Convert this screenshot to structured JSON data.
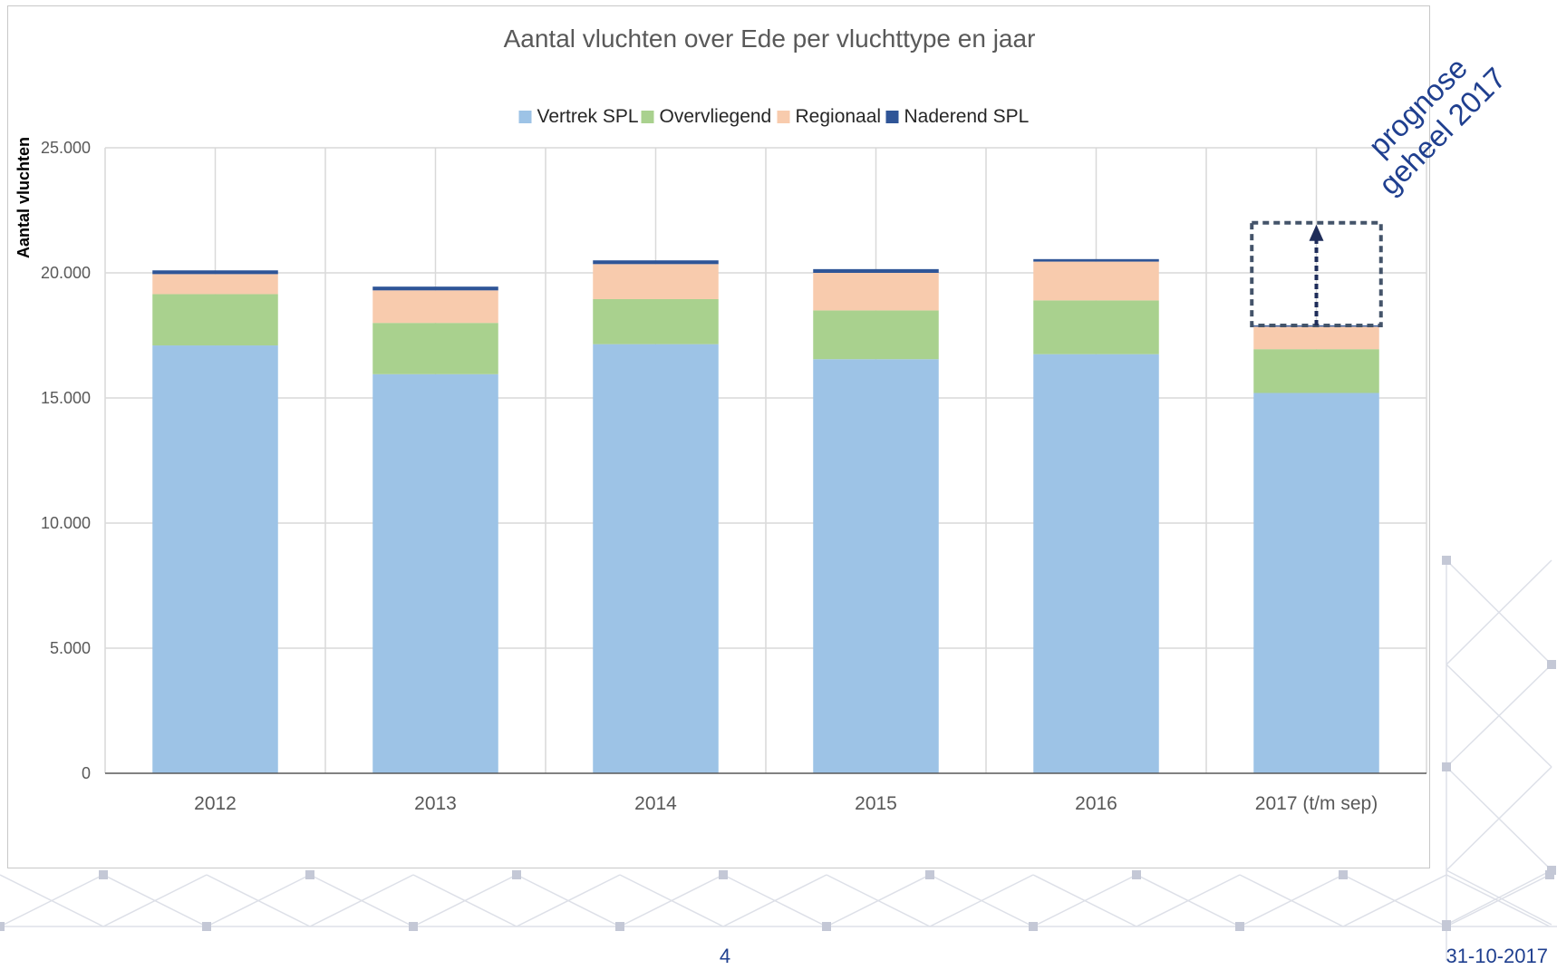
{
  "chart_data": {
    "type": "bar",
    "stacked": true,
    "title": "Aantal vluchten over Ede per vluchttype en jaar",
    "ylabel": "Aantal vluchten",
    "xlabel": "",
    "ylim": [
      0,
      25000
    ],
    "yticks": [
      0,
      5000,
      10000,
      15000,
      20000,
      25000
    ],
    "ytick_labels": [
      "0",
      "5.000",
      "10.000",
      "15.000",
      "20.000",
      "25.000"
    ],
    "grid": true,
    "legend_position": "top",
    "categories": [
      "2012",
      "2013",
      "2014",
      "2015",
      "2016",
      "2017 (t/m sep)"
    ],
    "series": [
      {
        "name": "Vertrek SPL",
        "color": "#9dc3e6",
        "values": [
          17100,
          15950,
          17150,
          16550,
          16750,
          15200
        ]
      },
      {
        "name": "Overvliegend",
        "color": "#a9d18e",
        "values": [
          2050,
          2050,
          1800,
          1950,
          2150,
          1750
        ]
      },
      {
        "name": "Regionaal",
        "color": "#f8cbad",
        "values": [
          800,
          1300,
          1400,
          1500,
          1550,
          900
        ]
      },
      {
        "name": "Naderend SPL",
        "color": "#2f5597",
        "values": [
          150,
          150,
          150,
          150,
          100,
          50
        ]
      }
    ],
    "annotation": {
      "text_lines": [
        "prognose",
        "geheel 2017"
      ],
      "category": "2017 (t/m sep)",
      "from_value": 17900,
      "to_value": 22000,
      "color": "#1f3f8f"
    }
  },
  "footer": {
    "page_number": "4",
    "date": "31-10-2017"
  }
}
